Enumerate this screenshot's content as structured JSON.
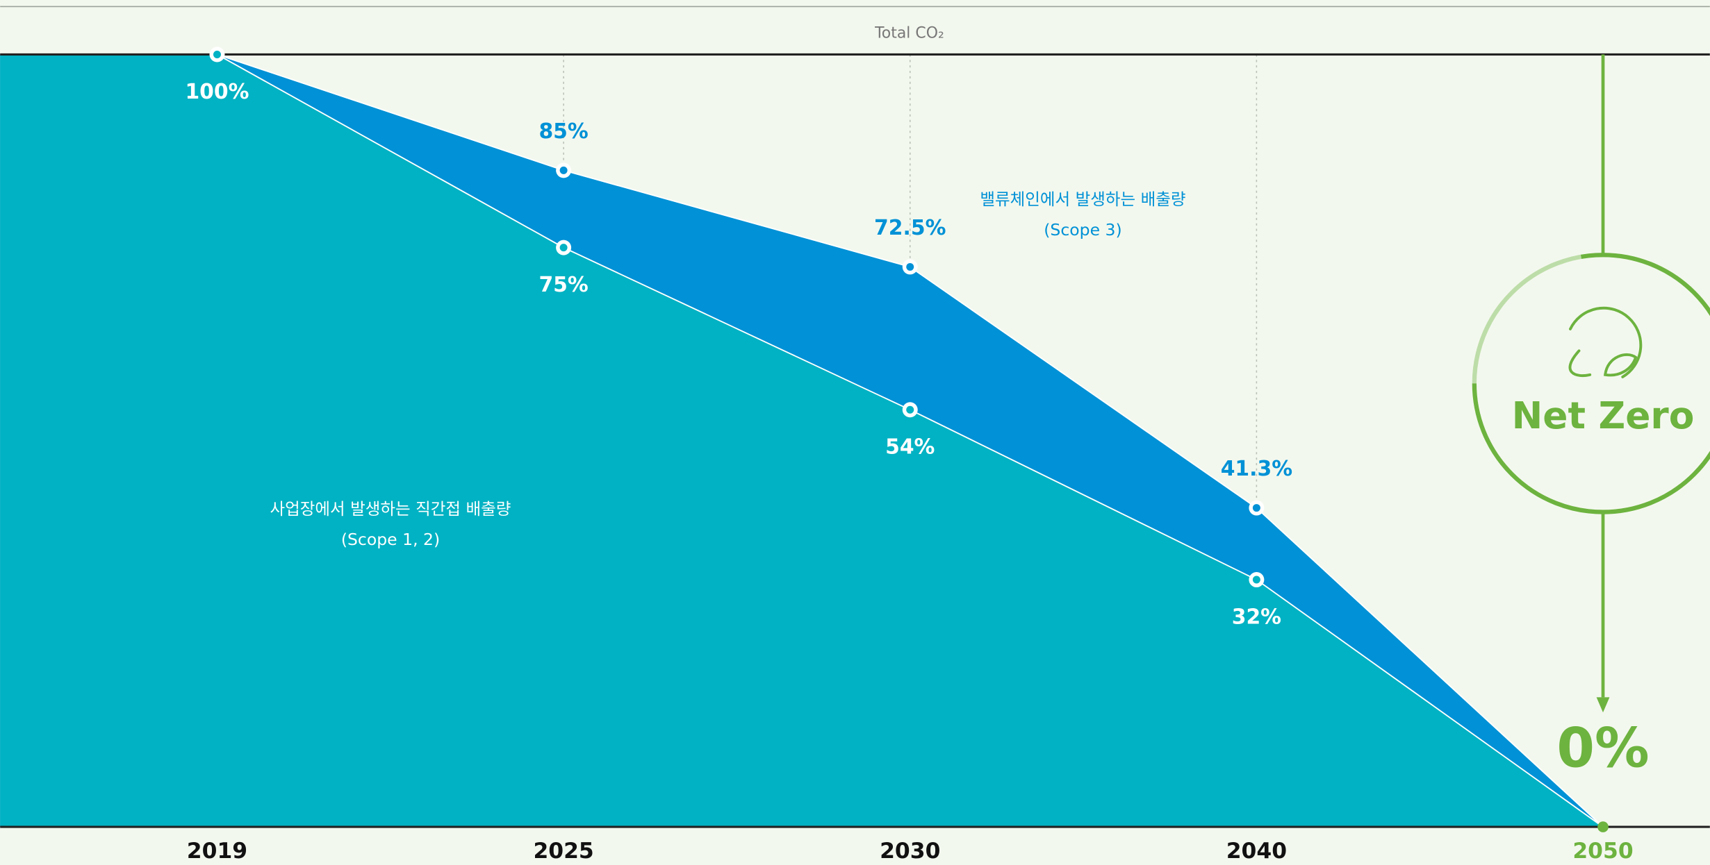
{
  "chart_data": {
    "type": "area",
    "title": "Total CO₂",
    "categories": [
      "2019",
      "2025",
      "2030",
      "2040",
      "2050"
    ],
    "series": [
      {
        "name": "사업장에서 발생하는 직간접 배출량",
        "scope": "(Scope 1, 2)",
        "color": "#00b2c3",
        "values": [
          100,
          75,
          54,
          32,
          0
        ],
        "value_labels": [
          "100%",
          "75%",
          "54%",
          "32%",
          "0%"
        ]
      },
      {
        "name": "밸류체인에서 발생하는 배출량",
        "scope": "(Scope 3)",
        "color": "#0091d6",
        "values": [
          100,
          85,
          72.5,
          41.3,
          0
        ],
        "value_labels": [
          null,
          "85%",
          "72.5%",
          "41.3%",
          null
        ]
      }
    ],
    "ylim": [
      0,
      100
    ],
    "target": "Net Zero",
    "target_color": "#6db33f"
  }
}
